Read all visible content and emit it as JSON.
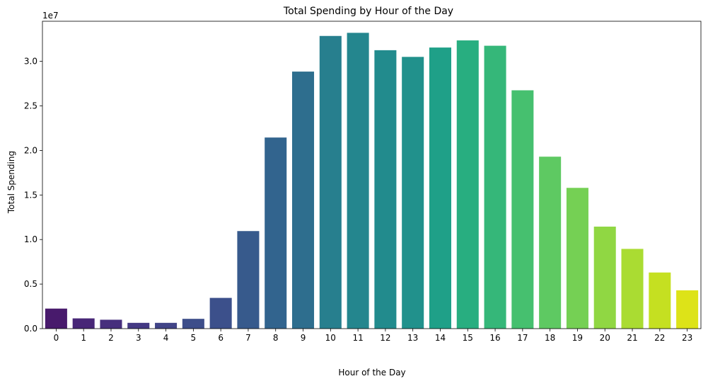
{
  "chart_data": {
    "type": "bar",
    "title": "Total Spending by Hour of the Day",
    "xlabel": "Hour of the Day",
    "ylabel": "Total Spending",
    "y_offset_label": "1e7",
    "y_scale": 10000000,
    "ylim": [
      0,
      34500000
    ],
    "yticks": [
      0,
      5000000,
      10000000,
      15000000,
      20000000,
      25000000,
      30000000
    ],
    "ytick_labels": [
      "0.0",
      "0.5",
      "1.0",
      "1.5",
      "2.0",
      "2.5",
      "3.0"
    ],
    "grid": false,
    "palette": "viridis",
    "categories": [
      "0",
      "1",
      "2",
      "3",
      "4",
      "5",
      "6",
      "7",
      "8",
      "9",
      "10",
      "11",
      "12",
      "13",
      "14",
      "15",
      "16",
      "17",
      "18",
      "19",
      "20",
      "21",
      "22",
      "23"
    ],
    "values": [
      2250000,
      1150000,
      1000000,
      650000,
      650000,
      1100000,
      3450000,
      10950000,
      21450000,
      28850000,
      32850000,
      33200000,
      31250000,
      30500000,
      31550000,
      32350000,
      31750000,
      26750000,
      19300000,
      15800000,
      11450000,
      8950000,
      6300000,
      4300000
    ],
    "colors": [
      "#481a6c",
      "#482777",
      "#472f7d",
      "#443983",
      "#414487",
      "#3d4e8a",
      "#3c508b",
      "#375a8c",
      "#32648e",
      "#2e6e8e",
      "#277f8e",
      "#24868e",
      "#228b8d",
      "#21918c",
      "#1fa088",
      "#28ae80",
      "#35b779",
      "#46c06f",
      "#5ec962",
      "#75d054",
      "#90d743",
      "#aadc32",
      "#c5e021",
      "#dde318"
    ]
  }
}
